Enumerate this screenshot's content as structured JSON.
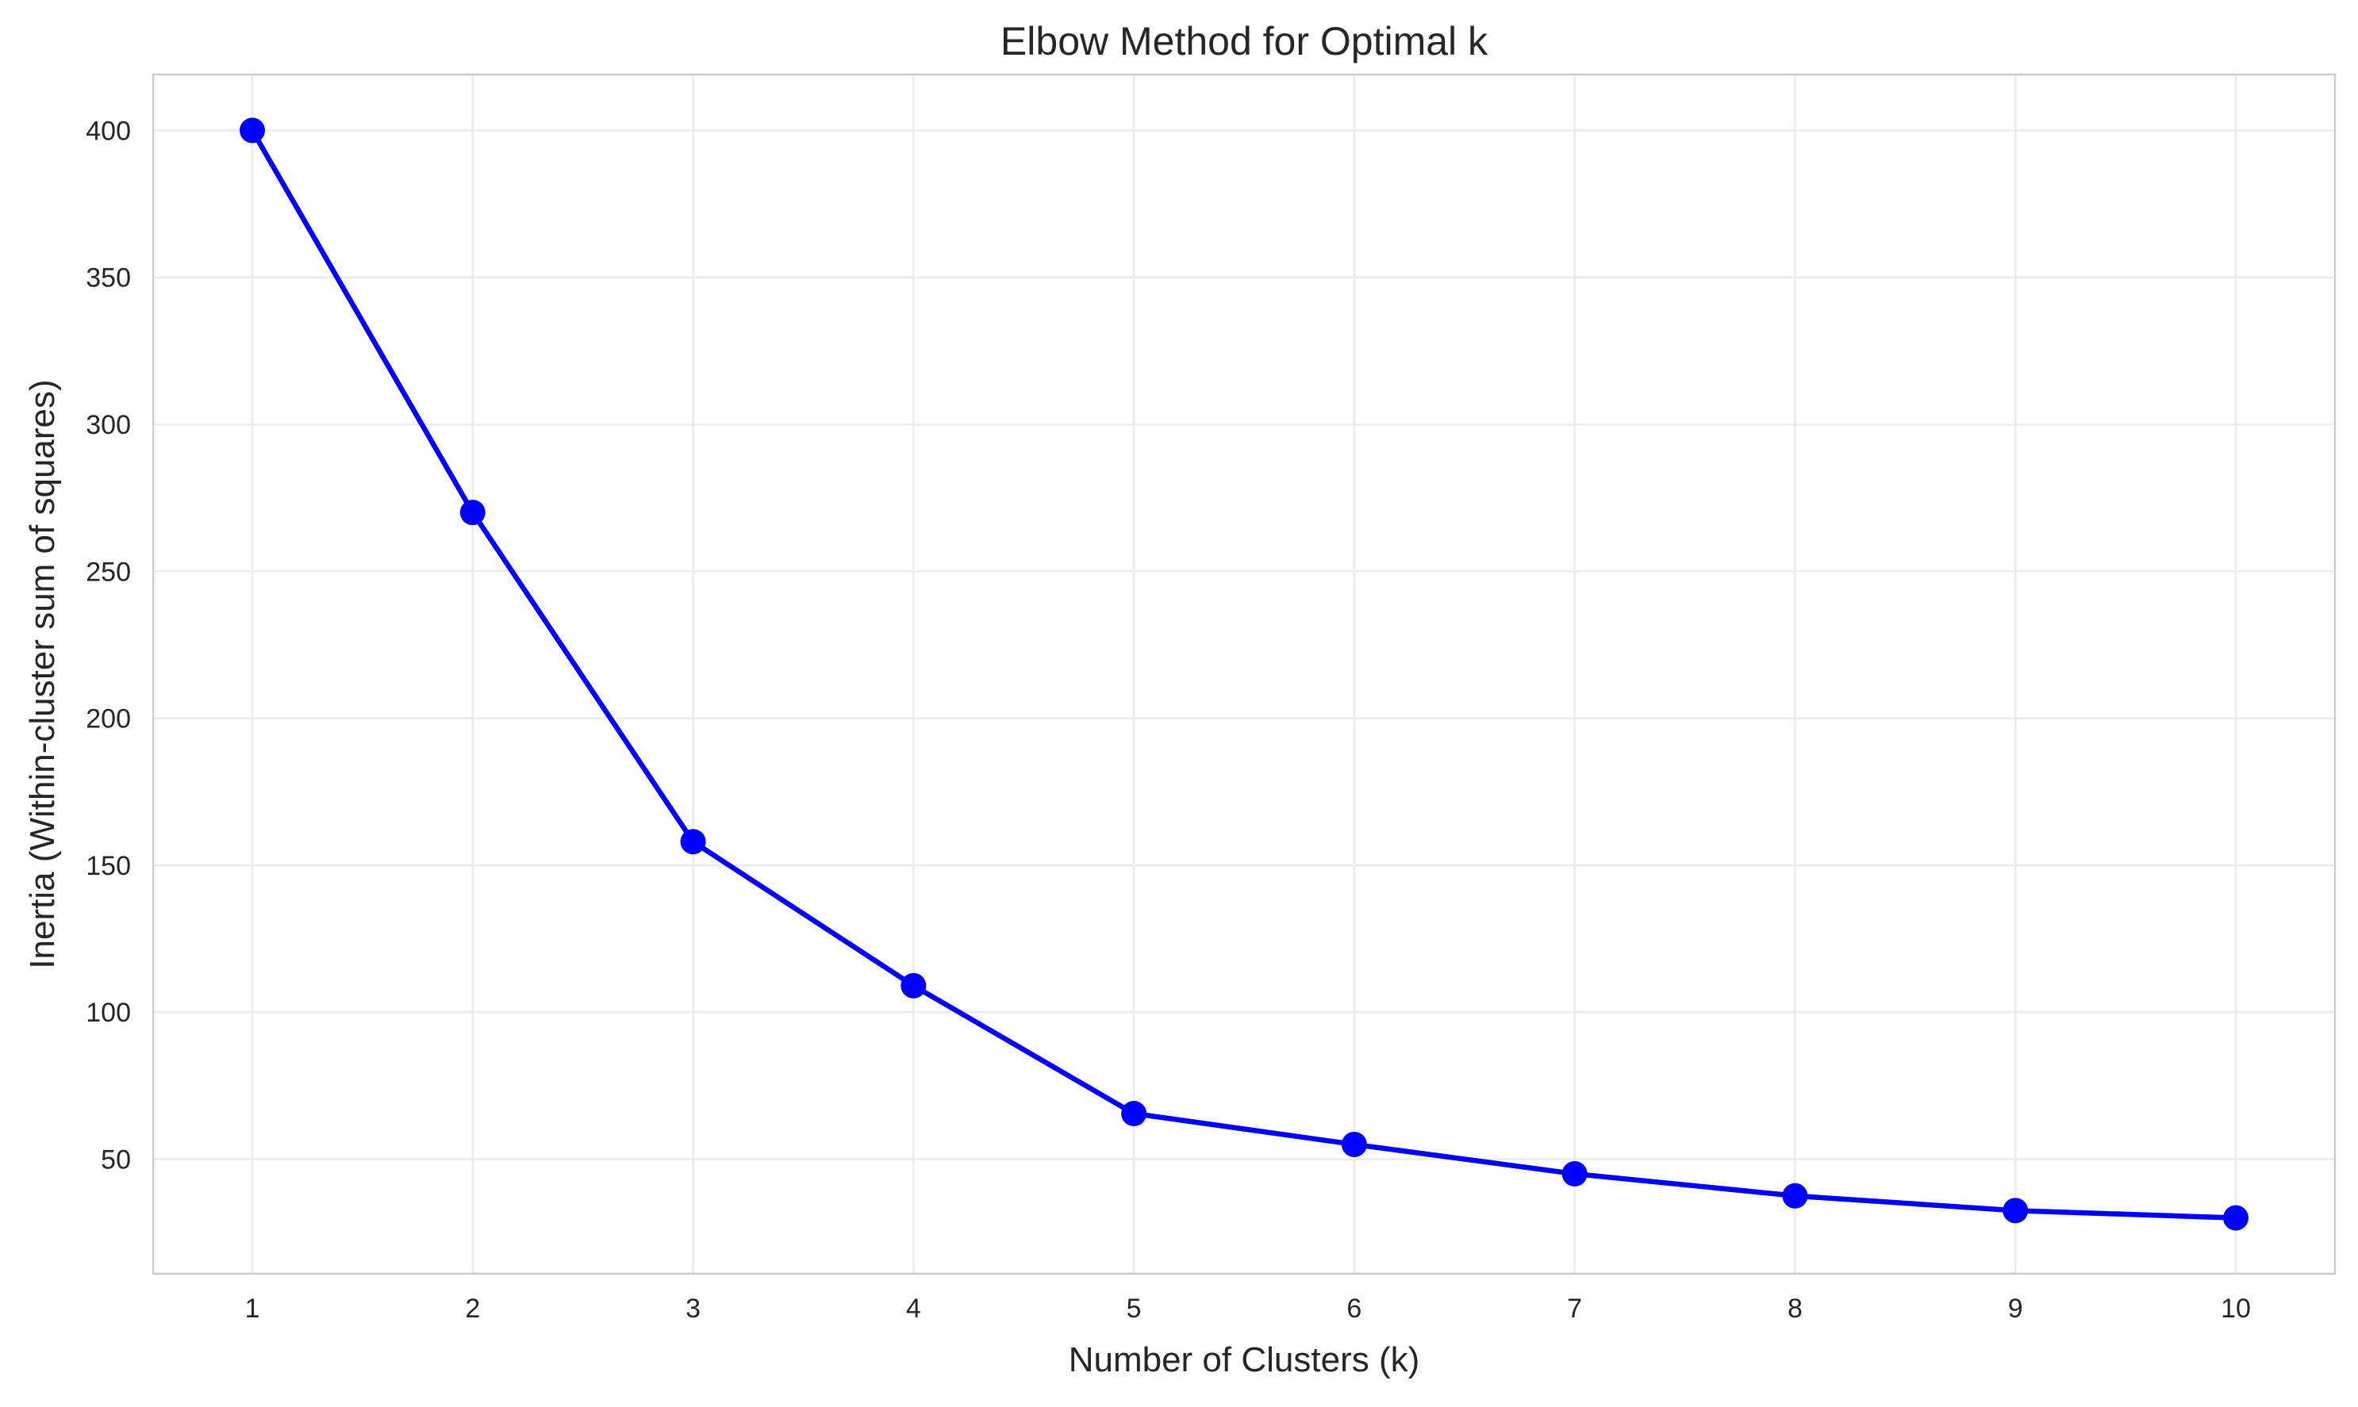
{
  "chart_data": {
    "type": "line",
    "title": "Elbow Method for Optimal k",
    "xlabel": "Number of Clusters (k)",
    "ylabel": "Inertia (Within-cluster sum of squares)",
    "x": [
      1,
      2,
      3,
      4,
      5,
      6,
      7,
      8,
      9,
      10
    ],
    "series": [
      {
        "values": [
          400,
          270,
          158,
          109,
          65.5,
          55,
          45,
          37.5,
          32.5,
          30
        ],
        "color": "#0000ff",
        "marker": "circle"
      }
    ],
    "xticks": [
      1,
      2,
      3,
      4,
      5,
      6,
      7,
      8,
      9,
      10
    ],
    "yticks": [
      50,
      100,
      150,
      200,
      250,
      300,
      350,
      400
    ],
    "xlim": [
      0.55,
      10.45
    ],
    "ylim": [
      11,
      419
    ],
    "grid": true,
    "legend": false
  }
}
